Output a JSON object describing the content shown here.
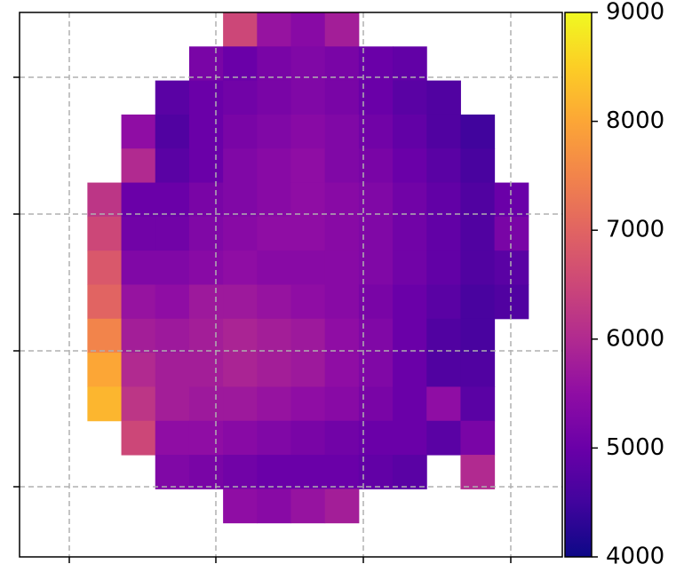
{
  "chart_data": {
    "type": "heatmap",
    "colormap": "plasma",
    "grid": true,
    "clim": [
      4000,
      9000
    ],
    "cticks": [
      4000,
      5000,
      6000,
      7000,
      8000,
      9000
    ],
    "values": [
      [
        null,
        null,
        null,
        null,
        null,
        null,
        6500,
        5600,
        5400,
        5800,
        null,
        null,
        null,
        null,
        null,
        null
      ],
      [
        null,
        null,
        null,
        null,
        null,
        5200,
        5000,
        5200,
        5300,
        5200,
        5000,
        4900,
        null,
        null,
        null,
        null
      ],
      [
        null,
        null,
        null,
        null,
        4800,
        5000,
        5100,
        5200,
        5300,
        5200,
        5000,
        4800,
        4700,
        null,
        null,
        null
      ],
      [
        null,
        null,
        null,
        5500,
        4700,
        5000,
        5200,
        5300,
        5400,
        5300,
        5100,
        4900,
        4700,
        4500,
        null,
        null
      ],
      [
        null,
        null,
        null,
        6000,
        4800,
        5000,
        5300,
        5400,
        5500,
        5300,
        5200,
        5000,
        4800,
        4600,
        null,
        null
      ],
      [
        null,
        null,
        6200,
        5000,
        5000,
        5200,
        5300,
        5400,
        5500,
        5400,
        5300,
        5100,
        4900,
        4700,
        5000,
        null
      ],
      [
        null,
        null,
        6500,
        5100,
        5100,
        5300,
        5400,
        5500,
        5500,
        5400,
        5300,
        5100,
        4900,
        4700,
        5200,
        null
      ],
      [
        null,
        null,
        6800,
        5300,
        5300,
        5400,
        5500,
        5400,
        5400,
        5400,
        5300,
        5100,
        4900,
        4700,
        4800,
        null
      ],
      [
        null,
        null,
        7000,
        5600,
        5500,
        5700,
        5700,
        5600,
        5500,
        5400,
        5200,
        5000,
        4800,
        4600,
        4700,
        null
      ],
      [
        null,
        null,
        7500,
        5800,
        5700,
        5800,
        5900,
        5800,
        5700,
        5500,
        5300,
        5000,
        4700,
        4600,
        null,
        null
      ],
      [
        null,
        null,
        8000,
        6000,
        5800,
        5800,
        5900,
        5800,
        5700,
        5500,
        5300,
        5000,
        4700,
        4700,
        null,
        null
      ],
      [
        null,
        null,
        8200,
        6200,
        5800,
        5700,
        5700,
        5600,
        5500,
        5400,
        5200,
        5000,
        5500,
        4800,
        null,
        null
      ],
      [
        null,
        null,
        null,
        6500,
        5500,
        5500,
        5400,
        5300,
        5200,
        5100,
        5000,
        5000,
        4800,
        5200,
        null,
        null
      ],
      [
        null,
        null,
        null,
        null,
        5300,
        5200,
        5100,
        5000,
        5000,
        5000,
        4900,
        4800,
        null,
        6000,
        null,
        null
      ],
      [
        null,
        null,
        null,
        null,
        null,
        null,
        5500,
        5400,
        5600,
        5800,
        null,
        null,
        null,
        null,
        null,
        null
      ],
      [
        null,
        null,
        null,
        null,
        null,
        null,
        null,
        null,
        null,
        null,
        null,
        null,
        null,
        null,
        null,
        null
      ]
    ]
  }
}
